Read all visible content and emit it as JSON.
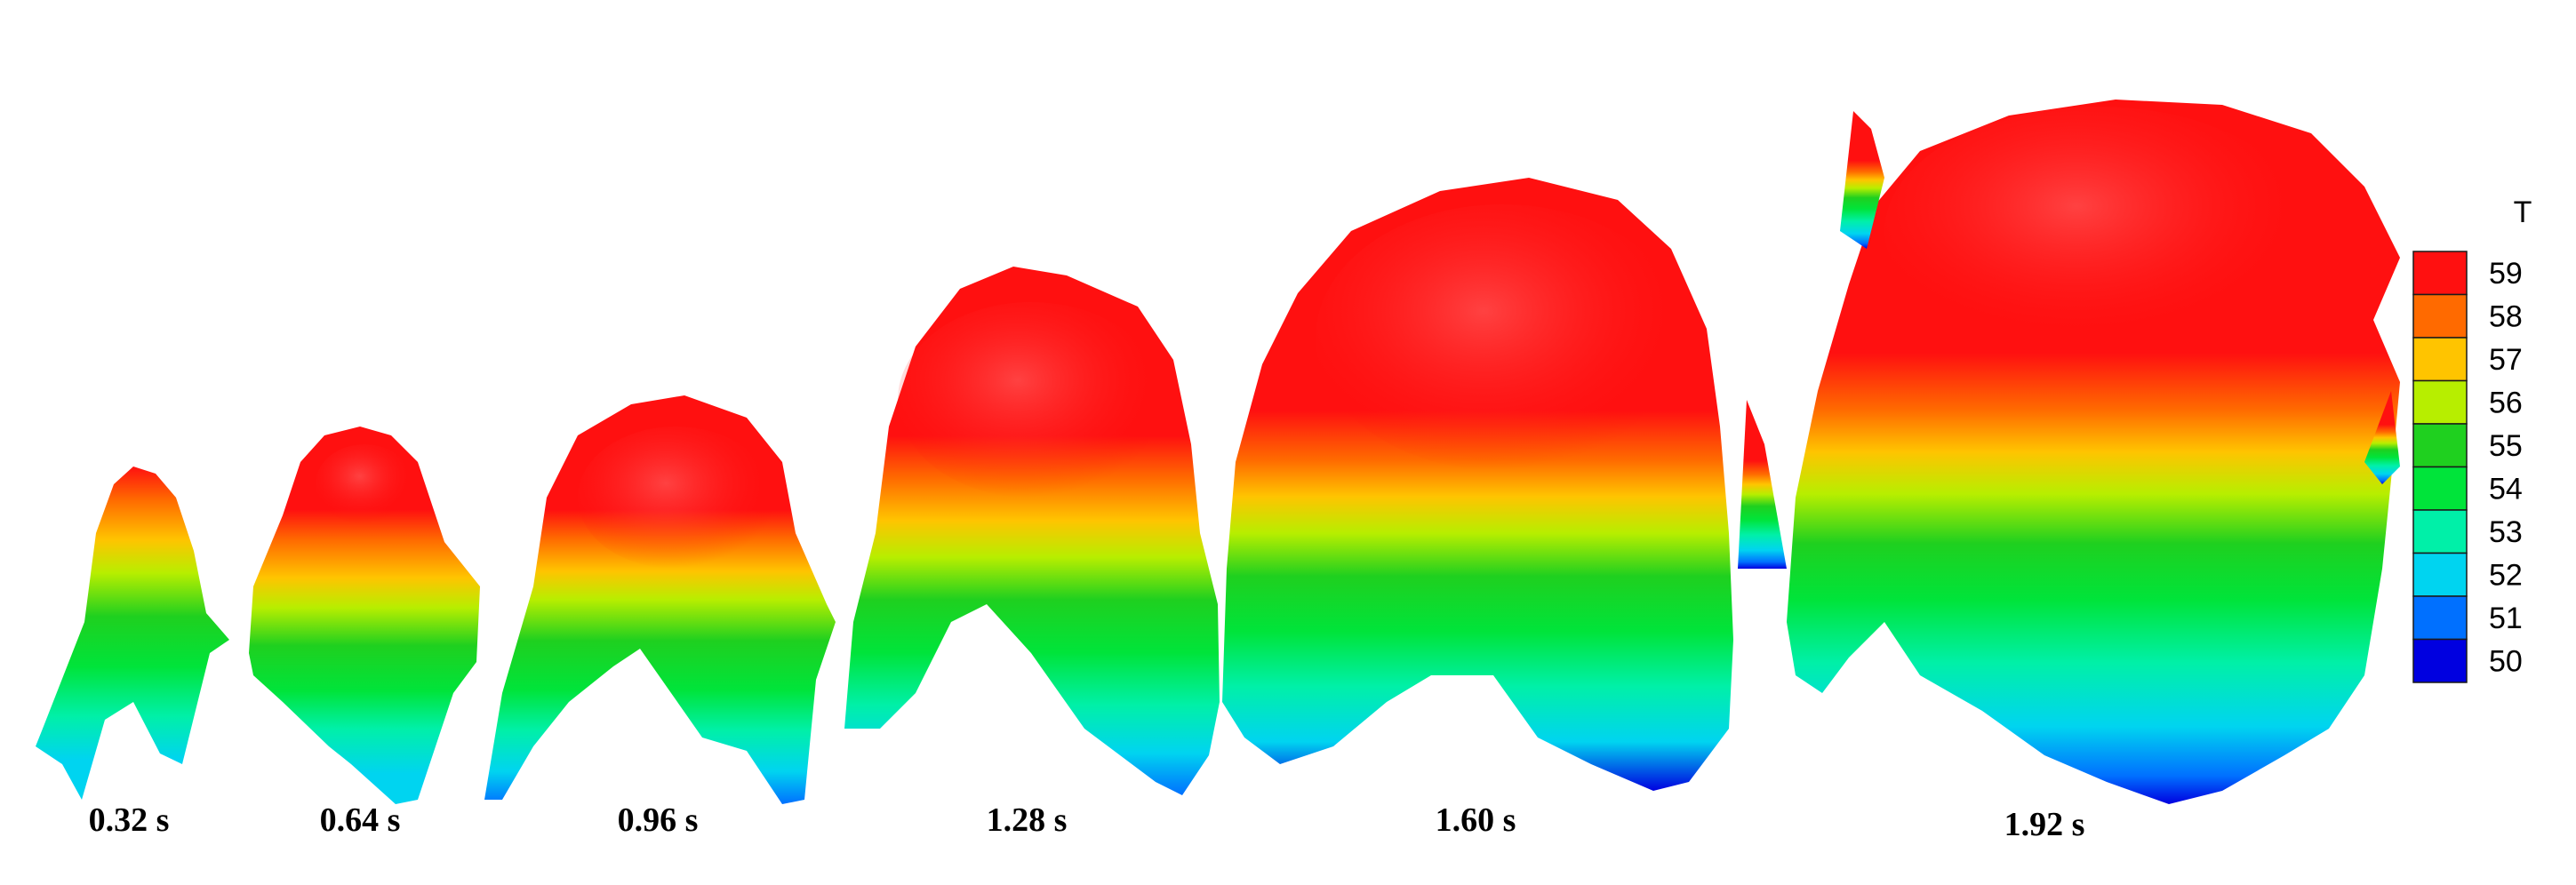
{
  "snapshots": [
    {
      "time_label": "0.32 s"
    },
    {
      "time_label": "0.64 s"
    },
    {
      "time_label": "0.96 s"
    },
    {
      "time_label": "1.28 s"
    },
    {
      "time_label": "1.60 s"
    },
    {
      "time_label": "1.92 s"
    }
  ],
  "legend": {
    "title": "T",
    "levels": [
      {
        "value": "59",
        "color": "#ff1010"
      },
      {
        "value": "58",
        "color": "#ff6a00"
      },
      {
        "value": "57",
        "color": "#ffc400"
      },
      {
        "value": "56",
        "color": "#b7ee00"
      },
      {
        "value": "55",
        "color": "#1fd01f"
      },
      {
        "value": "54",
        "color": "#00e43a"
      },
      {
        "value": "53",
        "color": "#00f0a8"
      },
      {
        "value": "52",
        "color": "#00d4f0"
      },
      {
        "value": "51",
        "color": "#0070ff"
      },
      {
        "value": "50",
        "color": "#0000e0"
      }
    ]
  }
}
